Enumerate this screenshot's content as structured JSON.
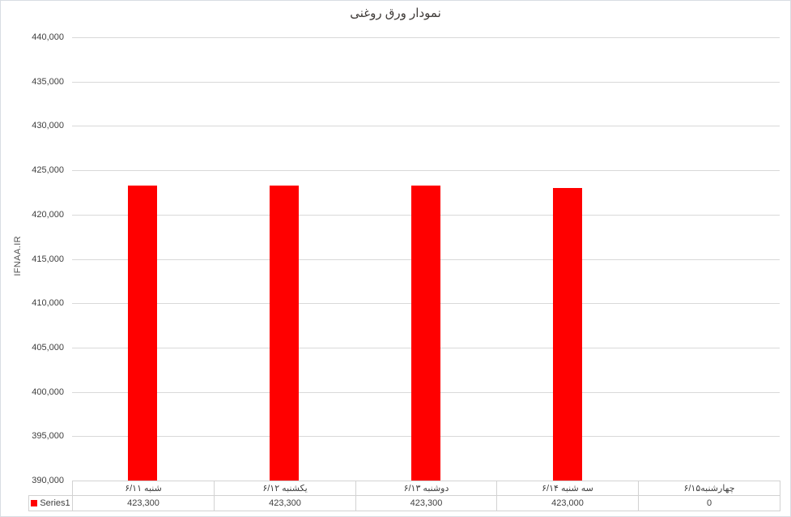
{
  "chart_data": {
    "type": "bar",
    "title": "نمودار ورق روغنی",
    "ylabel": "IFNAA.IR",
    "xlabel": "",
    "categories": [
      "شنبه ۶/۱۱",
      "یکشنبه ۶/۱۲",
      "دوشنبه ۶/۱۳",
      "سه شنبه ۶/۱۴",
      "چهارشنبه۶/۱۵"
    ],
    "series": [
      {
        "name": "Series1",
        "values": [
          423300,
          423300,
          423300,
          423000,
          0
        ]
      }
    ],
    "value_labels": [
      "423,300",
      "423,300",
      "423,300",
      "423,000",
      "0"
    ],
    "ylim": [
      390000,
      440000
    ],
    "ytick_interval": 5000,
    "ytick_labels": [
      "440,000",
      "435,000",
      "430,000",
      "425,000",
      "420,000",
      "415,000",
      "410,000",
      "405,000",
      "400,000",
      "395,000",
      "390,000"
    ],
    "grid": true,
    "legend_position": "bottom-left-table",
    "colors": {
      "bar": "#ff0000",
      "gridline": "#d9d9d9",
      "table_border": "#d2d2d2",
      "tick_text": "#404040",
      "title_text": "#3e3a37"
    }
  }
}
